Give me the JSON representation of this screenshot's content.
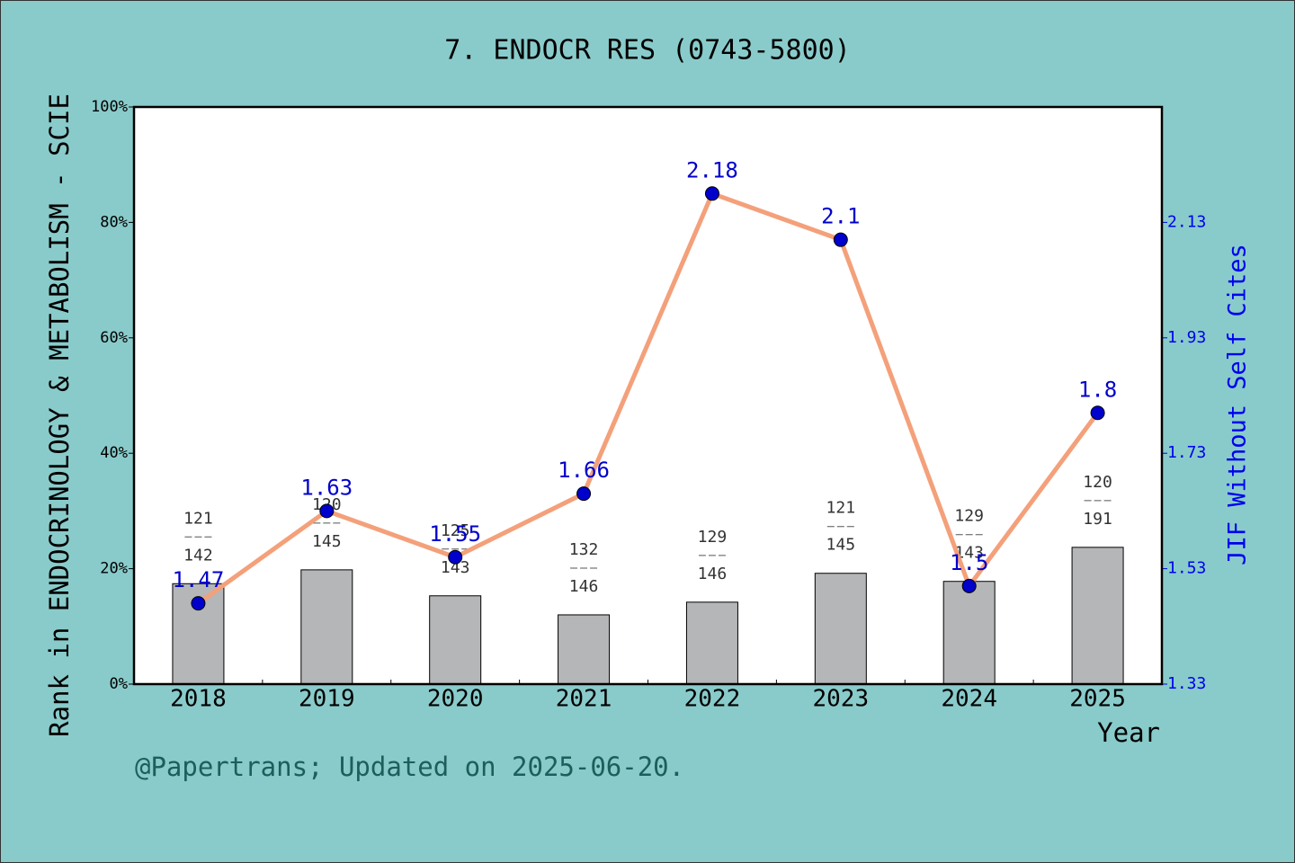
{
  "chart_data": {
    "type": "bar",
    "title": "7. ENDOCR RES (0743-5800)",
    "ylabel": "Rank in ENDOCRINOLOGY & METABOLISM - SCIE",
    "y2label": "JIF Without Self Cites",
    "xlabel": "Year",
    "note": "@Papertrans; Updated on 2025-06-20.",
    "categories": [
      "2018",
      "2019",
      "2020",
      "2021",
      "2022",
      "2023",
      "2024",
      "2025"
    ],
    "series": [
      {
        "type": "bar",
        "color": "#b5b6b8",
        "values": [
          17.4,
          19.8,
          15.3,
          12.0,
          14.2,
          19.2,
          17.8,
          23.7
        ],
        "ranks": [
          121,
          120,
          125,
          132,
          129,
          121,
          129,
          120
        ],
        "totals": [
          142,
          145,
          143,
          146,
          146,
          145,
          143,
          191
        ]
      },
      {
        "type": "line",
        "axis": "y2",
        "color": "#f4a07a",
        "marker_color": "#0000cc",
        "values": [
          1.47,
          1.63,
          1.55,
          1.66,
          2.18,
          2.1,
          1.5,
          1.8
        ]
      }
    ],
    "ylim": [
      0,
      100
    ],
    "yticks": [
      {
        "value": 0,
        "label": "0%"
      },
      {
        "value": 20,
        "label": "20%"
      },
      {
        "value": 40,
        "label": "40%"
      },
      {
        "value": 60,
        "label": "60%"
      },
      {
        "value": 80,
        "label": "80%"
      },
      {
        "value": 100,
        "label": "100%"
      }
    ],
    "y2lim": [
      1.33,
      2.33
    ],
    "y2ticks": [
      1.33,
      1.53,
      1.73,
      1.93,
      2.13
    ]
  }
}
